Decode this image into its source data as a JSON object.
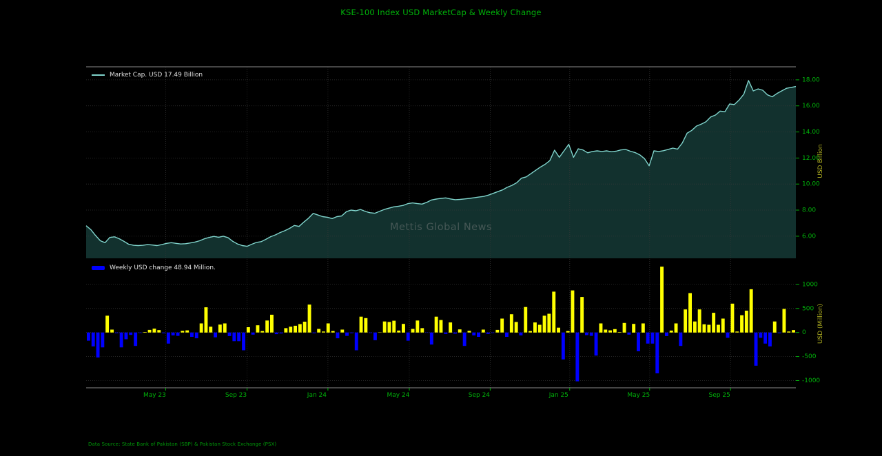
{
  "title": "KSE-100 Index USD MarketCap & Weekly Change",
  "watermark": "Mettis Global News",
  "footer": "Data Source: State Bank of Pakistan (SBP) & Pakistan Stock Exchange (PSX)",
  "colors": {
    "background": "#000000",
    "title": "#00b40a",
    "tick_label": "#00b40a",
    "axis_title": "#b4b422",
    "grid": "#383838",
    "spine": "#8a8a8a",
    "legend_text": "#e0e0e0",
    "watermark": "#4f5e5c",
    "footer": "#00990a",
    "line": "#80d4cc",
    "area_fill": "#12312e",
    "bar_positive": "#ffff00",
    "bar_negative": "#0000ff"
  },
  "x_axis": {
    "tick_labels": [
      "May 23",
      "Sep 23",
      "Jan 24",
      "May 24",
      "Sep 24",
      "Jan 25",
      "May 25",
      "Sep 25"
    ],
    "tick_positions_week": [
      16.8,
      34.0,
      51.1,
      68.3,
      85.4,
      102.2,
      119.1,
      136.2
    ]
  },
  "chart_data": [
    {
      "type": "area",
      "name": "market_cap",
      "legend": "Market Cap. USD 17.49 Billion",
      "ylabel": "USD Billion",
      "ylim": [
        4.3,
        19.0
      ],
      "ytick_values": [
        6,
        8,
        10,
        12,
        14,
        16,
        18
      ],
      "ytick_labels": [
        "6.00",
        "8.00",
        "10.00",
        "12.00",
        "14.00",
        "16.00",
        "18.00"
      ],
      "latest_value_billion": 17.49,
      "values": [
        6.8,
        6.5,
        6.05,
        5.65,
        5.5,
        5.9,
        5.95,
        5.8,
        5.6,
        5.38,
        5.3,
        5.28,
        5.3,
        5.35,
        5.32,
        5.28,
        5.35,
        5.45,
        5.5,
        5.45,
        5.4,
        5.42,
        5.48,
        5.55,
        5.65,
        5.8,
        5.9,
        5.98,
        5.92,
        6.0,
        5.88,
        5.6,
        5.4,
        5.28,
        5.22,
        5.38,
        5.52,
        5.58,
        5.76,
        5.96,
        6.1,
        6.28,
        6.42,
        6.6,
        6.82,
        6.75,
        7.08,
        7.38,
        7.75,
        7.62,
        7.5,
        7.45,
        7.35,
        7.5,
        7.55,
        7.88,
        8.0,
        7.95,
        8.05,
        7.9,
        7.8,
        7.76,
        7.9,
        8.05,
        8.15,
        8.25,
        8.3,
        8.36,
        8.5,
        8.55,
        8.5,
        8.46,
        8.6,
        8.78,
        8.85,
        8.9,
        8.94,
        8.86,
        8.8,
        8.82,
        8.86,
        8.9,
        8.95,
        9.0,
        9.05,
        9.15,
        9.28,
        9.42,
        9.55,
        9.75,
        9.9,
        10.1,
        10.45,
        10.55,
        10.8,
        11.05,
        11.3,
        11.52,
        11.8,
        12.6,
        12.05,
        12.55,
        13.05,
        12.05,
        12.7,
        12.62,
        12.4,
        12.5,
        12.55,
        12.5,
        12.55,
        12.48,
        12.52,
        12.62,
        12.66,
        12.52,
        12.42,
        12.25,
        11.95,
        11.4,
        12.55,
        12.5,
        12.56,
        12.66,
        12.76,
        12.68,
        13.15,
        13.9,
        14.12,
        14.45,
        14.6,
        14.78,
        15.15,
        15.3,
        15.6,
        15.55,
        16.15,
        16.1,
        16.45,
        16.9,
        17.95,
        17.15,
        17.3,
        17.2,
        16.85,
        16.7,
        16.95,
        17.15,
        17.35,
        17.42,
        17.49
      ]
    },
    {
      "type": "bar",
      "name": "weekly_usd_change",
      "legend": "Weekly USD change 48.94 Million.",
      "ylabel": "USD (Million)",
      "ylim": [
        -1150,
        1500
      ],
      "ytick_values": [
        -1000,
        -500,
        0,
        500,
        1000
      ],
      "ytick_labels": [
        "-1000",
        "-500",
        "0",
        "500",
        "1000"
      ],
      "latest_value_million": 48.94,
      "values": [
        -170,
        -290,
        -520,
        -310,
        350,
        60,
        -15,
        -310,
        -140,
        -50,
        -280,
        -10,
        10,
        55,
        80,
        50,
        -15,
        -230,
        -60,
        -70,
        35,
        45,
        -90,
        -120,
        190,
        525,
        120,
        -100,
        165,
        190,
        -75,
        -180,
        -180,
        -370,
        110,
        -45,
        150,
        30,
        250,
        370,
        -35,
        -20,
        90,
        120,
        140,
        175,
        225,
        580,
        -15,
        75,
        20,
        190,
        30,
        -120,
        60,
        -70,
        -15,
        -370,
        330,
        300,
        -10,
        -160,
        5,
        230,
        220,
        245,
        40,
        180,
        -170,
        75,
        250,
        90,
        -5,
        -250,
        330,
        260,
        -30,
        210,
        -25,
        65,
        -280,
        35,
        -60,
        -90,
        60,
        -30,
        -10,
        55,
        290,
        -90,
        380,
        220,
        -60,
        530,
        30,
        210,
        160,
        350,
        390,
        850,
        100,
        -560,
        30,
        875,
        -1015,
        740,
        -55,
        -70,
        -480,
        190,
        60,
        45,
        70,
        10,
        200,
        -45,
        180,
        -390,
        190,
        -230,
        -230,
        -850,
        1370,
        -75,
        40,
        190,
        -280,
        480,
        820,
        230,
        480,
        170,
        160,
        410,
        160,
        290,
        -110,
        600,
        20,
        360,
        455,
        900,
        -690,
        -110,
        -230,
        -290,
        230,
        -15,
        490,
        20,
        50
      ]
    }
  ]
}
